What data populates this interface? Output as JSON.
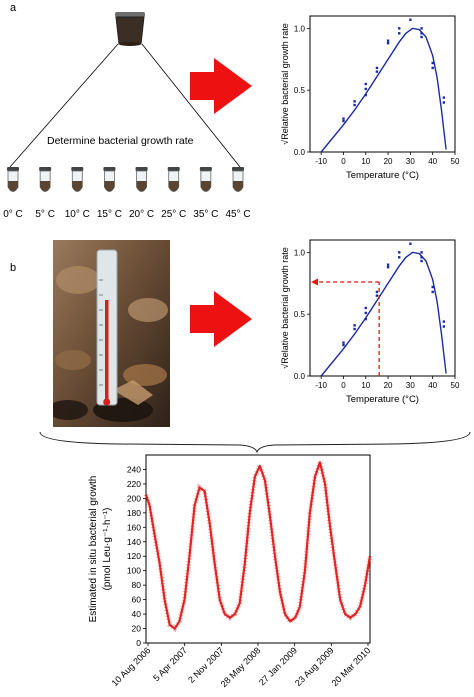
{
  "panel_a": {
    "label": "a",
    "caption": "Determine bacterial growth rate",
    "tubes": [
      "0° C",
      "5° C",
      "10° C",
      "15° C",
      "20° C",
      "25° C",
      "35° C",
      "45° C"
    ]
  },
  "panel_b": {
    "label": "b"
  },
  "colors": {
    "curve": "#1a2aa8",
    "points": "#1a2aa8",
    "arrow": "#ee1111",
    "series": "#e01010"
  },
  "chart_data": [
    {
      "id": "chart_a",
      "type": "scatter",
      "ylabel": "√Relative bacterial growth rate",
      "xlabel": "Temperature (°C)",
      "xlim": [
        -15,
        50
      ],
      "ylim": [
        0,
        1.1
      ],
      "xticks": [
        -10,
        0,
        10,
        20,
        30,
        40,
        50
      ],
      "yticks": [
        0.0,
        0.5,
        1.0
      ],
      "ytick_labels": [
        "0.0",
        "0.5",
        "1.0"
      ],
      "points": [
        [
          0,
          0.25
        ],
        [
          0,
          0.27
        ],
        [
          5,
          0.38
        ],
        [
          5,
          0.41
        ],
        [
          10,
          0.46
        ],
        [
          10,
          0.51
        ],
        [
          10,
          0.55
        ],
        [
          15,
          0.65
        ],
        [
          15,
          0.68
        ],
        [
          20,
          0.88
        ],
        [
          20,
          0.9
        ],
        [
          25,
          0.96
        ],
        [
          25,
          1.0
        ],
        [
          30,
          1.07
        ],
        [
          35,
          0.93
        ],
        [
          35,
          0.96
        ],
        [
          35,
          1.0
        ],
        [
          40,
          0.68
        ],
        [
          40,
          0.72
        ],
        [
          45,
          0.4
        ],
        [
          45,
          0.44
        ]
      ],
      "curve": [
        [
          -10,
          0
        ],
        [
          0,
          0.22
        ],
        [
          5,
          0.34
        ],
        [
          10,
          0.47
        ],
        [
          15,
          0.61
        ],
        [
          20,
          0.75
        ],
        [
          25,
          0.89
        ],
        [
          28,
          0.96
        ],
        [
          31,
          1.0
        ],
        [
          34,
          0.99
        ],
        [
          37,
          0.93
        ],
        [
          40,
          0.78
        ],
        [
          42,
          0.6
        ],
        [
          44,
          0.33
        ],
        [
          46,
          0.02
        ]
      ]
    },
    {
      "id": "chart_b",
      "type": "scatter",
      "ylabel": "√Relative bacterial growth rate",
      "xlabel": "Temperature (°C)",
      "xlim": [
        -15,
        50
      ],
      "ylim": [
        0,
        1.1
      ],
      "xticks": [
        -10,
        0,
        10,
        20,
        30,
        40,
        50
      ],
      "yticks": [
        0.0,
        0.5,
        1.0
      ],
      "ytick_labels": [
        "0.0",
        "0.5",
        "1.0"
      ],
      "points": [
        [
          0,
          0.25
        ],
        [
          0,
          0.27
        ],
        [
          5,
          0.38
        ],
        [
          5,
          0.41
        ],
        [
          10,
          0.46
        ],
        [
          10,
          0.51
        ],
        [
          10,
          0.55
        ],
        [
          15,
          0.65
        ],
        [
          15,
          0.68
        ],
        [
          20,
          0.88
        ],
        [
          20,
          0.9
        ],
        [
          25,
          0.96
        ],
        [
          25,
          1.0
        ],
        [
          30,
          1.07
        ],
        [
          35,
          0.93
        ],
        [
          35,
          0.96
        ],
        [
          35,
          1.0
        ],
        [
          40,
          0.68
        ],
        [
          40,
          0.72
        ],
        [
          45,
          0.4
        ],
        [
          45,
          0.44
        ]
      ],
      "curve": [
        [
          -10,
          0
        ],
        [
          0,
          0.22
        ],
        [
          5,
          0.34
        ],
        [
          10,
          0.47
        ],
        [
          15,
          0.61
        ],
        [
          20,
          0.75
        ],
        [
          25,
          0.89
        ],
        [
          28,
          0.96
        ],
        [
          31,
          1.0
        ],
        [
          34,
          0.99
        ],
        [
          37,
          0.93
        ],
        [
          40,
          0.78
        ],
        [
          42,
          0.6
        ],
        [
          44,
          0.33
        ],
        [
          46,
          0.02
        ]
      ],
      "readout": {
        "temperature": 16,
        "value": 0.76
      }
    },
    {
      "id": "chart_c",
      "type": "line",
      "ylabel": "Estimated in situ bacterial growth",
      "ylabel2": "(pmol Leu·g⁻¹·h⁻¹)",
      "ylim": [
        0,
        260
      ],
      "yticks": [
        0,
        20,
        40,
        60,
        80,
        100,
        120,
        140,
        160,
        180,
        200,
        220,
        240
      ],
      "xtick_labels": [
        "10 Aug 2006",
        "5 Apr 2007",
        "2 Nov 2007",
        "28 May 2008",
        "27 Jan 2009",
        "23 Aug 2009",
        "20 Mar 2010"
      ],
      "x_dates": [
        "2006-08-10",
        "2006-09-01",
        "2006-10-01",
        "2006-11-01",
        "2006-12-01",
        "2007-01-01",
        "2007-02-01",
        "2007-03-01",
        "2007-04-01",
        "2007-05-01",
        "2007-06-01",
        "2007-07-01",
        "2007-08-01",
        "2007-09-01",
        "2007-10-01",
        "2007-11-01",
        "2007-12-01",
        "2008-01-01",
        "2008-02-01",
        "2008-03-01",
        "2008-04-01",
        "2008-05-01",
        "2008-06-01",
        "2008-07-01",
        "2008-08-01",
        "2008-09-01",
        "2008-10-01",
        "2008-11-01",
        "2008-12-01",
        "2009-01-01",
        "2009-02-01",
        "2009-03-01",
        "2009-04-01",
        "2009-05-01",
        "2009-06-01",
        "2009-07-01",
        "2009-08-01",
        "2009-09-01",
        "2009-10-01",
        "2009-11-01",
        "2009-12-01",
        "2010-01-01",
        "2010-02-01",
        "2010-03-01",
        "2010-04-01",
        "2010-05-01"
      ],
      "values": [
        205,
        190,
        150,
        110,
        60,
        25,
        20,
        30,
        60,
        120,
        190,
        215,
        210,
        165,
        110,
        60,
        40,
        35,
        40,
        55,
        110,
        180,
        230,
        245,
        225,
        175,
        120,
        70,
        40,
        30,
        35,
        50,
        100,
        180,
        230,
        250,
        220,
        160,
        110,
        60,
        40,
        35,
        40,
        50,
        80,
        120
      ]
    }
  ]
}
